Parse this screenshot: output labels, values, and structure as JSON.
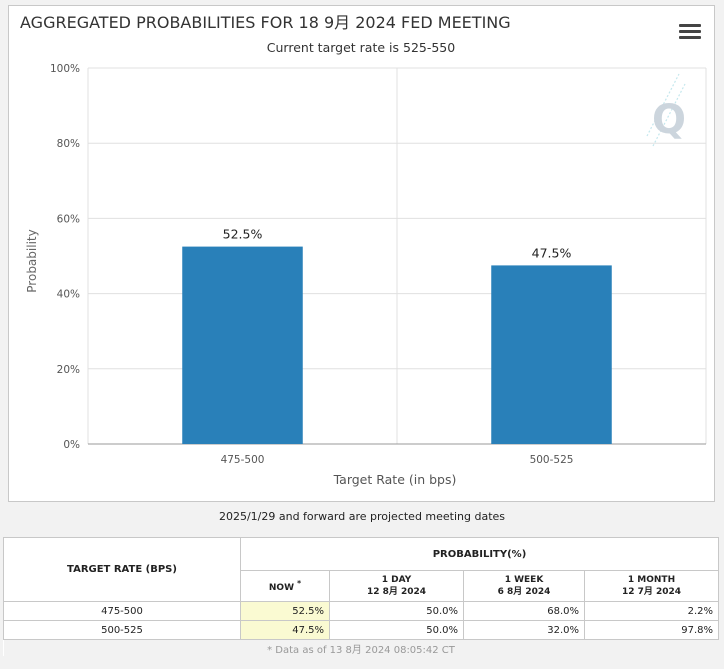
{
  "chart_data": {
    "type": "bar",
    "title": "AGGREGATED PROBABILITIES FOR 18 9月 2024 FED MEETING",
    "subtitle": "Current target rate is 525-550",
    "categories": [
      "475-500",
      "500-525"
    ],
    "values": [
      52.5,
      47.5
    ],
    "data_labels": [
      "52.5%",
      "47.5%"
    ],
    "xlabel": "Target Rate (in bps)",
    "ylabel": "Probability",
    "ylim": [
      0,
      100
    ],
    "yticks": [
      0,
      20,
      40,
      60,
      80,
      100
    ],
    "ytick_labels": [
      "0%",
      "20%",
      "40%",
      "60%",
      "80%",
      "100%"
    ],
    "bar_color": "#2980b9",
    "grid": true
  },
  "watermark_letter": "Q",
  "note": "2025/1/29 and forward are projected meeting dates",
  "table": {
    "col_target": "TARGET RATE (BPS)",
    "col_probability": "PROBABILITY(%)",
    "now_label": "NOW",
    "now_marker": "*",
    "periods": [
      {
        "label": "1 DAY",
        "date": "12 8月 2024"
      },
      {
        "label": "1 WEEK",
        "date": "6 8月 2024"
      },
      {
        "label": "1 MONTH",
        "date": "12 7月 2024"
      }
    ],
    "rows": [
      {
        "rate": "475-500",
        "now": "52.5%",
        "day": "50.0%",
        "week": "68.0%",
        "month": "2.2%"
      },
      {
        "rate": "500-525",
        "now": "47.5%",
        "day": "50.0%",
        "week": "32.0%",
        "month": "97.8%"
      }
    ],
    "footer": "* Data as of 13 8月 2024 08:05:42 CT"
  }
}
